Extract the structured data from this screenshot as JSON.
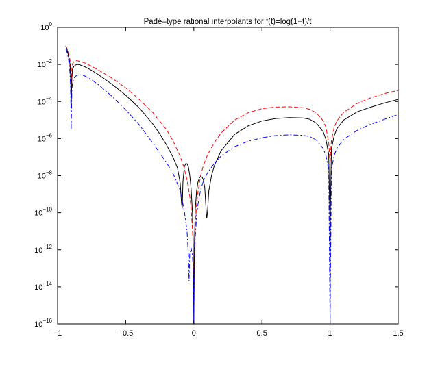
{
  "chart_data": {
    "type": "line",
    "title": "Padé–type rational interpolants for f(t)=log(1+t)/t",
    "xlabel": "",
    "ylabel": "",
    "xlim": [
      -1,
      1.5
    ],
    "ylim": [
      1e-16,
      1
    ],
    "yscale": "log",
    "grid": false,
    "legend": "none",
    "x_ticks": [
      -1,
      -0.5,
      0,
      0.5,
      1,
      1.5
    ],
    "x_tick_labels": [
      "−1",
      "−0.5",
      "0",
      "0.5",
      "1",
      "1.5"
    ],
    "y_ticks": [
      {
        "value": 1,
        "base": "10",
        "exp": "0"
      },
      {
        "value": 0.01,
        "base": "10",
        "exp": "−2"
      },
      {
        "value": 0.0001,
        "base": "10",
        "exp": "−4"
      },
      {
        "value": 1e-06,
        "base": "10",
        "exp": "−6"
      },
      {
        "value": 1e-08,
        "base": "10",
        "exp": "−8"
      },
      {
        "value": 1e-10,
        "base": "10",
        "exp": "−10"
      },
      {
        "value": 1e-12,
        "base": "10",
        "exp": "−12"
      },
      {
        "value": 1e-14,
        "base": "10",
        "exp": "−14"
      },
      {
        "value": 1e-16,
        "base": "10",
        "exp": "−16"
      }
    ],
    "series": [
      {
        "color": "#ff0000",
        "style": "dashed",
        "points": [
          [
            -0.94,
            0.1
          ],
          [
            -0.93,
            0.07
          ],
          [
            -0.92,
            0.045
          ],
          [
            -0.91,
            0.02
          ],
          [
            -0.905,
            0.008
          ],
          [
            -0.9,
            0.001
          ],
          [
            -0.895,
            0.006
          ],
          [
            -0.89,
            0.011
          ],
          [
            -0.88,
            0.014
          ],
          [
            -0.86,
            0.016
          ],
          [
            -0.84,
            0.015
          ],
          [
            -0.8,
            0.012
          ],
          [
            -0.75,
            0.008
          ],
          [
            -0.7,
            0.005
          ],
          [
            -0.6,
            0.0018
          ],
          [
            -0.5,
            0.00055
          ],
          [
            -0.4,
            0.00013
          ],
          [
            -0.3,
            2.5e-05
          ],
          [
            -0.2,
            3e-06
          ],
          [
            -0.15,
            7e-07
          ],
          [
            -0.1,
            1.1e-07
          ],
          [
            -0.07,
            2.5e-08
          ],
          [
            -0.05,
            6e-09
          ],
          [
            -0.03,
            8e-10
          ],
          [
            -0.02,
            1.8e-10
          ],
          [
            -0.01,
            1.2e-11
          ],
          [
            -0.005,
            2e-12
          ],
          [
            0,
            1e-14
          ],
          [
            0.005,
            1.5e-12
          ],
          [
            0.01,
            1.5e-11
          ],
          [
            0.02,
            2.5e-10
          ],
          [
            0.03,
            1.3e-09
          ],
          [
            0.05,
            1e-08
          ],
          [
            0.07,
            3.5e-08
          ],
          [
            0.1,
            1.3e-07
          ],
          [
            0.15,
            6e-07
          ],
          [
            0.2,
            2e-06
          ],
          [
            0.3,
            1e-05
          ],
          [
            0.4,
            2.5e-05
          ],
          [
            0.5,
            4.1e-05
          ],
          [
            0.6,
            5e-05
          ],
          [
            0.7,
            5.2e-05
          ],
          [
            0.8,
            4.6e-05
          ],
          [
            0.85,
            3.8e-05
          ],
          [
            0.9,
            2.4e-05
          ],
          [
            0.95,
            9e-06
          ],
          [
            0.97,
            4e-06
          ],
          [
            0.99,
            6e-07
          ],
          [
            1.0,
            6e-08
          ],
          [
            1.01,
            8e-07
          ],
          [
            1.03,
            4e-06
          ],
          [
            1.05,
            9e-06
          ],
          [
            1.1,
            2.6e-05
          ],
          [
            1.2,
            8e-05
          ],
          [
            1.3,
            0.00016
          ],
          [
            1.4,
            0.00027
          ],
          [
            1.5,
            0.0004
          ]
        ]
      },
      {
        "color": "#000000",
        "style": "solid",
        "points": [
          [
            -0.94,
            0.1
          ],
          [
            -0.93,
            0.06
          ],
          [
            -0.92,
            0.03
          ],
          [
            -0.91,
            0.012
          ],
          [
            -0.905,
            0.004
          ],
          [
            -0.9,
            5e-05
          ],
          [
            -0.895,
            0.002
          ],
          [
            -0.89,
            0.0055
          ],
          [
            -0.88,
            0.008
          ],
          [
            -0.86,
            0.01
          ],
          [
            -0.84,
            0.0098
          ],
          [
            -0.8,
            0.0075
          ],
          [
            -0.75,
            0.0048
          ],
          [
            -0.7,
            0.0028
          ],
          [
            -0.6,
            0.00085
          ],
          [
            -0.5,
            0.00022
          ],
          [
            -0.4,
            4.5e-05
          ],
          [
            -0.3,
            6e-06
          ],
          [
            -0.25,
            1.8e-06
          ],
          [
            -0.2,
            4.5e-07
          ],
          [
            -0.15,
            9e-08
          ],
          [
            -0.12,
            2.6e-08
          ],
          [
            -0.1,
            4e-09
          ],
          [
            -0.09,
            3e-10
          ],
          [
            -0.085,
            1.7e-10
          ],
          [
            -0.08,
            4.6e-09
          ],
          [
            -0.07,
            2.9e-08
          ],
          [
            -0.06,
            4.4e-08
          ],
          [
            -0.05,
            4.4e-08
          ],
          [
            -0.04,
            3e-08
          ],
          [
            -0.03,
            1.1e-08
          ],
          [
            -0.02,
            2e-09
          ],
          [
            -0.01,
            1e-10
          ],
          [
            -0.005,
            5e-12
          ],
          [
            0,
            1e-16
          ],
          [
            0.005,
            3e-12
          ],
          [
            0.01,
            1.3e-10
          ],
          [
            0.02,
            1.4e-09
          ],
          [
            0.03,
            4.3e-09
          ],
          [
            0.04,
            7.5e-09
          ],
          [
            0.05,
            8.9e-09
          ],
          [
            0.06,
            8.5e-09
          ],
          [
            0.07,
            6e-09
          ],
          [
            0.08,
            2.4e-09
          ],
          [
            0.09,
            1.5e-10
          ],
          [
            0.095,
            5e-11
          ],
          [
            0.1,
            1e-10
          ],
          [
            0.11,
            1.5e-09
          ],
          [
            0.13,
            1e-08
          ],
          [
            0.15,
            3.4e-08
          ],
          [
            0.2,
            2.2e-07
          ],
          [
            0.3,
            1.7e-06
          ],
          [
            0.4,
            4.9e-06
          ],
          [
            0.5,
            8.9e-06
          ],
          [
            0.6,
            1.2e-05
          ],
          [
            0.7,
            1.35e-05
          ],
          [
            0.8,
            1.3e-05
          ],
          [
            0.85,
            1.1e-05
          ],
          [
            0.9,
            6.8e-06
          ],
          [
            0.95,
            2.3e-06
          ],
          [
            0.97,
            8.8e-07
          ],
          [
            0.99,
            1.4e-07
          ],
          [
            0.998,
            1e-10
          ],
          [
            1.0,
            1e-16
          ],
          [
            1.002,
            1e-10
          ],
          [
            1.01,
            2.8e-07
          ],
          [
            1.03,
            1.4e-06
          ],
          [
            1.05,
            3.4e-06
          ],
          [
            1.1,
            1e-05
          ],
          [
            1.2,
            2.8e-05
          ],
          [
            1.3,
            5e-05
          ],
          [
            1.4,
            8.4e-05
          ],
          [
            1.5,
            0.00013
          ]
        ]
      },
      {
        "color": "#0000ff",
        "style": "dashdot",
        "points": [
          [
            -0.94,
            0.07
          ],
          [
            -0.93,
            0.045
          ],
          [
            -0.92,
            0.02
          ],
          [
            -0.91,
            0.0045
          ],
          [
            -0.905,
            0.0008
          ],
          [
            -0.9,
            3e-06
          ],
          [
            -0.895,
            0.0004
          ],
          [
            -0.89,
            0.0011
          ],
          [
            -0.88,
            0.0018
          ],
          [
            -0.86,
            0.0026
          ],
          [
            -0.84,
            0.0028
          ],
          [
            -0.8,
            0.0024
          ],
          [
            -0.75,
            0.0015
          ],
          [
            -0.7,
            0.0008
          ],
          [
            -0.6,
            0.00019
          ],
          [
            -0.5,
            3.6e-05
          ],
          [
            -0.4,
            5.5e-06
          ],
          [
            -0.3,
            5.6e-07
          ],
          [
            -0.2,
            5e-08
          ],
          [
            -0.15,
            1.2e-08
          ],
          [
            -0.1,
            1.6e-09
          ],
          [
            -0.07,
            1.3e-10
          ],
          [
            -0.05,
            1.1e-11
          ],
          [
            -0.04,
            5e-13
          ],
          [
            -0.035,
            2e-14
          ],
          [
            -0.03,
            6e-13
          ],
          [
            -0.02,
            1.3e-12
          ],
          [
            -0.01,
            5e-13
          ],
          [
            -0.003,
            5e-14
          ],
          [
            0,
            1e-16
          ],
          [
            0.003,
            5e-14
          ],
          [
            0.01,
            4e-12
          ],
          [
            0.02,
            6e-11
          ],
          [
            0.03,
            2.7e-10
          ],
          [
            0.05,
            1.7e-09
          ],
          [
            0.07,
            5e-09
          ],
          [
            0.1,
            1.4e-08
          ],
          [
            0.15,
            4.6e-08
          ],
          [
            0.2,
            1.15e-07
          ],
          [
            0.3,
            3.7e-07
          ],
          [
            0.4,
            7.2e-07
          ],
          [
            0.5,
            1.1e-06
          ],
          [
            0.6,
            1.45e-06
          ],
          [
            0.7,
            1.6e-06
          ],
          [
            0.8,
            1.5e-06
          ],
          [
            0.85,
            1.3e-06
          ],
          [
            0.9,
            8.2e-07
          ],
          [
            0.95,
            2.9e-07
          ],
          [
            0.97,
            1.2e-07
          ],
          [
            0.99,
            2e-08
          ],
          [
            1.0,
            1e-16
          ],
          [
            1.01,
            2.3e-08
          ],
          [
            1.03,
            1.2e-07
          ],
          [
            1.05,
            3e-07
          ],
          [
            1.1,
            9e-07
          ],
          [
            1.2,
            2.8e-06
          ],
          [
            1.3,
            6e-06
          ],
          [
            1.4,
            1.1e-05
          ],
          [
            1.5,
            2e-05
          ]
        ]
      }
    ]
  }
}
